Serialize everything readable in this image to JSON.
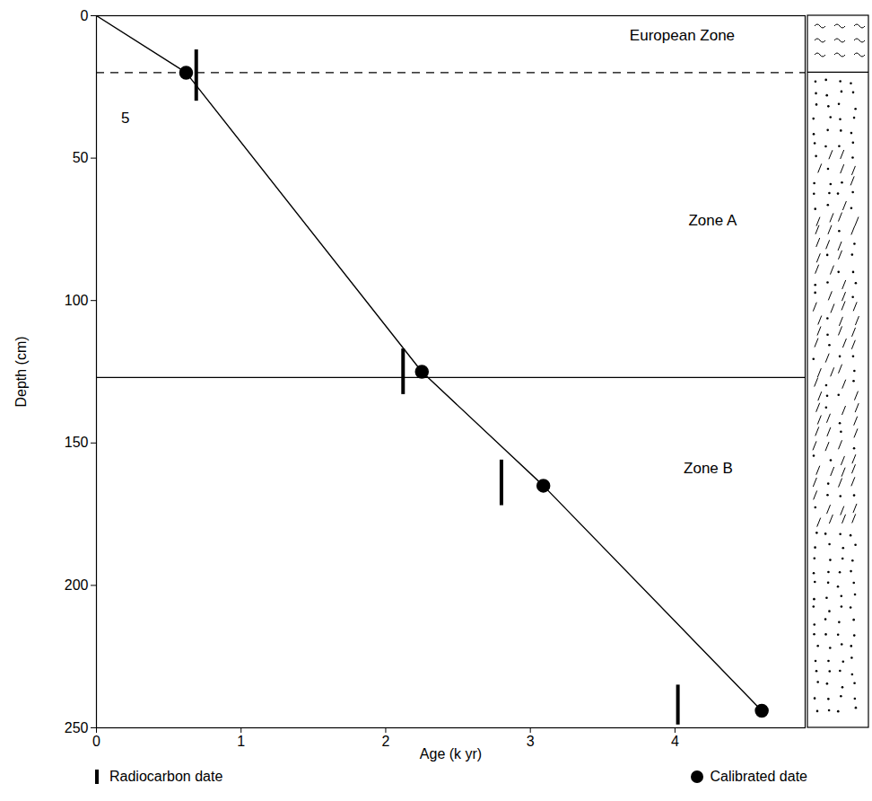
{
  "chart_data": {
    "type": "line",
    "x_label": "Age (k yr)",
    "y_label": "Depth (cm)",
    "xlim": [
      0,
      4.9
    ],
    "ylim": [
      250,
      0
    ],
    "xticks": [
      0,
      1,
      2,
      3,
      4
    ],
    "yticks": [
      0,
      50,
      100,
      150,
      200,
      250
    ],
    "grid": false,
    "legend": "bottom",
    "line": {
      "x": [
        0,
        0.62,
        2.25,
        3.09,
        4.6
      ],
      "y": [
        0,
        20,
        125,
        165,
        244
      ],
      "color": "#000000"
    },
    "series": [
      {
        "name": "Radiocarbon date",
        "color": "#000000",
        "marker": "vertical bar",
        "x": [
          0.69,
          2.12,
          2.8,
          4.02
        ],
        "y": [
          20,
          125,
          164,
          243
        ],
        "y_range": [
          [
            12,
            30
          ],
          [
            117,
            133
          ],
          [
            156,
            172
          ],
          [
            235,
            249
          ]
        ]
      },
      {
        "name": "Calibrated date",
        "color": "#000000",
        "marker": "circle",
        "x": [
          0.62,
          2.25,
          3.09,
          4.6
        ],
        "y": [
          20,
          125,
          165,
          244
        ]
      }
    ],
    "boundaries": [
      {
        "depth": 20,
        "line_style": "dashed"
      },
      {
        "depth": 127,
        "line_style": "solid"
      }
    ],
    "annotations": [
      {
        "text": "European Zone",
        "x": 4.05,
        "y": 7
      },
      {
        "text": "Zone A",
        "x": 4.26,
        "y": 72
      },
      {
        "text": "Zone B",
        "x": 4.23,
        "y": 159
      },
      {
        "text": "5",
        "x": 0.2,
        "y": 36
      }
    ]
  }
}
